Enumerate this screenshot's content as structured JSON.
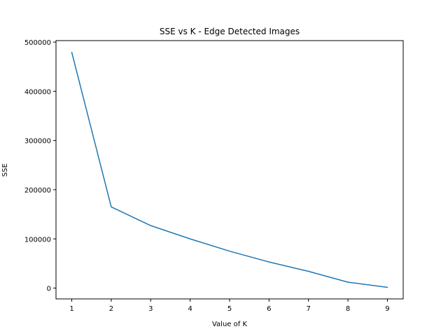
{
  "chart_data": {
    "type": "line",
    "title": "SSE vs K - Edge Detected Images",
    "xlabel": "Value of K",
    "ylabel": "SSE",
    "x": [
      1,
      2,
      3,
      4,
      5,
      6,
      7,
      8,
      9
    ],
    "series": [
      {
        "values": [
          479000,
          165000,
          127000,
          100000,
          75000,
          53000,
          34000,
          12000,
          1500
        ]
      }
    ],
    "xlim": [
      0.6,
      9.4
    ],
    "ylim": [
      -22000,
      503000
    ],
    "xticks": [
      1,
      2,
      3,
      4,
      5,
      6,
      7,
      8,
      9
    ],
    "yticks": [
      0,
      100000,
      200000,
      300000,
      400000,
      500000
    ],
    "xtick_labels": [
      "1",
      "2",
      "3",
      "4",
      "5",
      "6",
      "7",
      "8",
      "9"
    ],
    "ytick_labels": [
      "0",
      "100000",
      "200000",
      "300000",
      "400000",
      "500000"
    ],
    "line_color": "#1f77b4",
    "grid": false,
    "legend": "none"
  }
}
